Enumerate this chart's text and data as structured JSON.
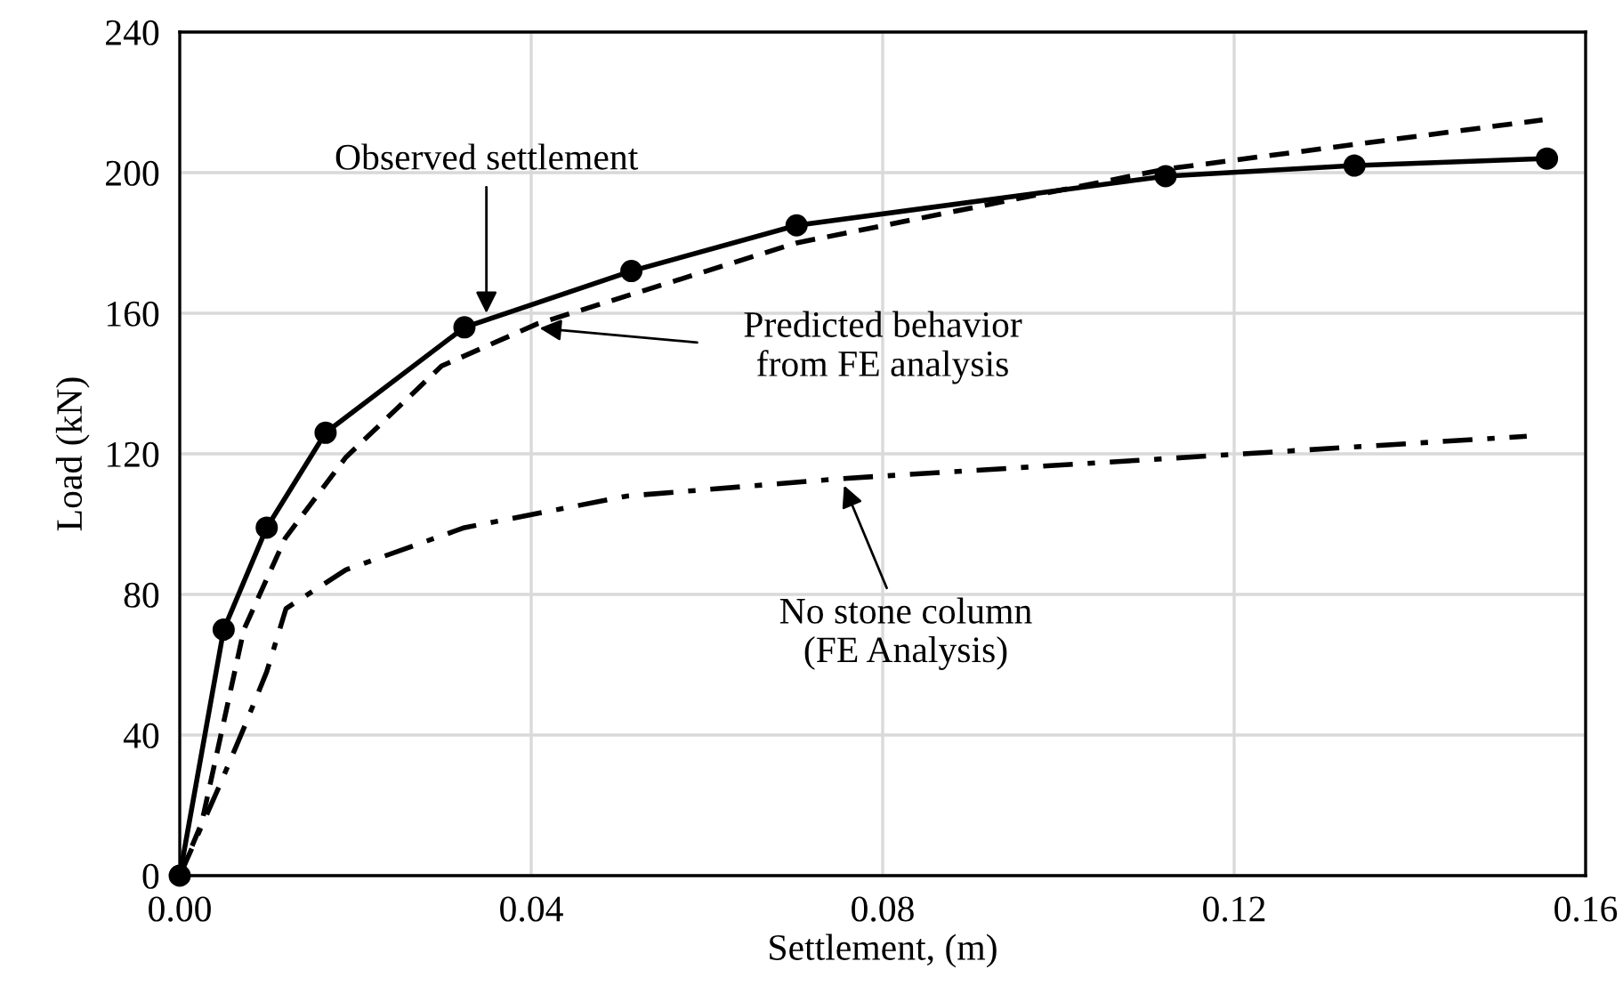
{
  "chart_data": {
    "type": "line",
    "xlabel": "Settlement, (m)",
    "ylabel": "Load (kN)",
    "xlim": [
      0,
      0.16
    ],
    "xticks": [
      {
        "value": 0,
        "label": "0.00"
      },
      {
        "value": 0.04,
        "label": "0.04"
      },
      {
        "value": 0.08,
        "label": "0.08"
      },
      {
        "value": 0.12,
        "label": "0.12"
      },
      {
        "value": 0.16,
        "label": "0.16"
      }
    ],
    "ylim": [
      0,
      240
    ],
    "yticks": [
      0,
      40,
      80,
      120,
      160,
      200,
      240
    ],
    "grid": true,
    "series": [
      {
        "color": "#000000",
        "marker": "circle",
        "line_style": "solid",
        "x": [
          0,
          0.005,
          0.0099,
          0.0166,
          0.0324,
          0.0514,
          0.0702,
          0.1122,
          0.1337,
          0.1556
        ],
        "values": [
          0,
          70,
          99,
          126,
          156,
          172,
          185,
          199,
          202,
          204
        ]
      },
      {
        "color": "#000000",
        "marker": "none",
        "line_style": "dashed",
        "x": [
          0,
          0.0025,
          0.0073,
          0.012,
          0.0189,
          0.0298,
          0.0407,
          0.0702,
          0.1122,
          0.1551
        ],
        "values": [
          0,
          15,
          70,
          96,
          119,
          145,
          157,
          180,
          201,
          215
        ]
      },
      {
        "color": "#000000",
        "marker": "none",
        "line_style": "dashdot",
        "x": [
          0,
          0.0046,
          0.0073,
          0.0099,
          0.0121,
          0.0189,
          0.0324,
          0.0509,
          0.0756,
          0.121,
          0.1533
        ],
        "values": [
          0,
          26,
          42,
          58,
          76,
          87,
          99,
          108,
          113,
          120,
          125
        ]
      }
    ],
    "annotations": [
      {
        "text": "Observed settlement",
        "x": 0.0349,
        "y": 160
      },
      "Predicted behavior\nfrom FE analysis",
      {
        "text": "No stone column\n(FE Analysis)",
        "x": 0.0756,
        "y": 111
      }
    ]
  }
}
